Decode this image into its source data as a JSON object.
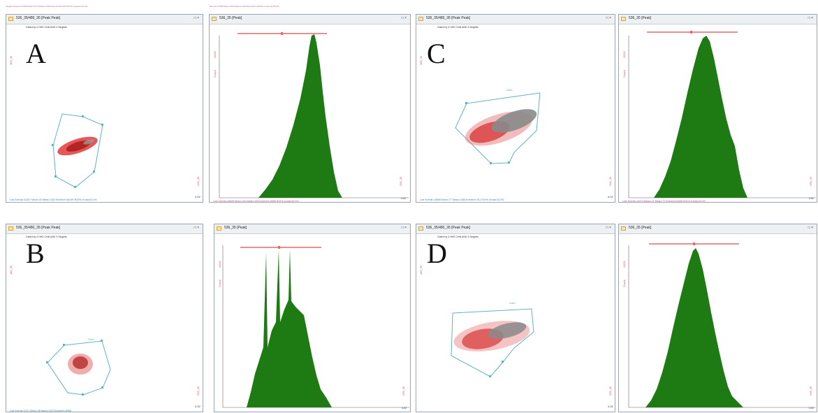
{
  "letters": [
    "A",
    "B",
    "C",
    "D"
  ],
  "top_stats": {
    "left": "Singlets Events=47468  Mean=1673  Mean=1430  Event%=81.92%  ROI% of gated 63.3%",
    "right": "Events=47468  Mean=1534  Mean=1430  Event%=1  ROI% of events=63.3%"
  },
  "panels": {
    "A_dot": {
      "title": "536_35/480_35 [Peak Peak]",
      "subtitle": "Gated by 4 HHS Cells AND 3 Singlets",
      "footer": "Line Events=42267  Mean=43  Mean=1152  Events%=66.6%  ROI% of total 63.3%"
    },
    "A_hist": {
      "title": "536_35 [Peak]",
      "footer": "Line Events=28628  Mean=204  Mean=208  Events%=8085  ROI% of total 63.3%"
    },
    "C_dot": {
      "title": "536_35/480_35 [Peak Peak]",
      "subtitle": "Gated by 4 HHS Cells AND 3 Singlets",
      "gate_label": "Gate",
      "footer": "Line Events=15898  Mean=77  Mean=1186  Events%=911  ROI% of total 63.3%"
    },
    "C_hist": {
      "title": "536_35 [Peak]",
      "footer": "Line Events=14274  Mean=71  Mean=77  Events%=8085  ROI% of total 63.3%"
    },
    "B_dot": {
      "title": "536_35/480_35 [Peak Peak]",
      "subtitle": "Gated by 4 HHS Cells AND 3 Singlets",
      "gate_label": "Gate",
      "footer": "Line Events=3121  Mean=38  Mean=1152  Events%=8085"
    },
    "B_hist": {
      "title": "536_35 [Peak]",
      "footer": ""
    },
    "D_dot": {
      "title": "536_35/480_35 [Peak Peak]",
      "subtitle": "Gated by 4 HHS Cells AND 3 Singlets",
      "gate_label": "Gate",
      "footer": ""
    },
    "D_hist": {
      "title": "536_35 [Peak]",
      "footer": ""
    }
  },
  "axis": {
    "dot_x_max": "4.02",
    "hist_x_max": "4.02",
    "dot_ylabel": "480_35",
    "dot_xlabel": "536_35",
    "hist_ylabel": "Count",
    "hist_xlabel": "536_35",
    "hist_ymax": "20000"
  },
  "titlebar_buttons": "□ ×",
  "colors": {
    "histogram": "#1e7a12",
    "marker": "#e06a6a",
    "gate": "#5fb3c0",
    "dots_red": "#d62a2a",
    "dots_gray": "#8a8a8a"
  },
  "icons": [
    "window-icon",
    "minimize-icon",
    "close-icon"
  ]
}
